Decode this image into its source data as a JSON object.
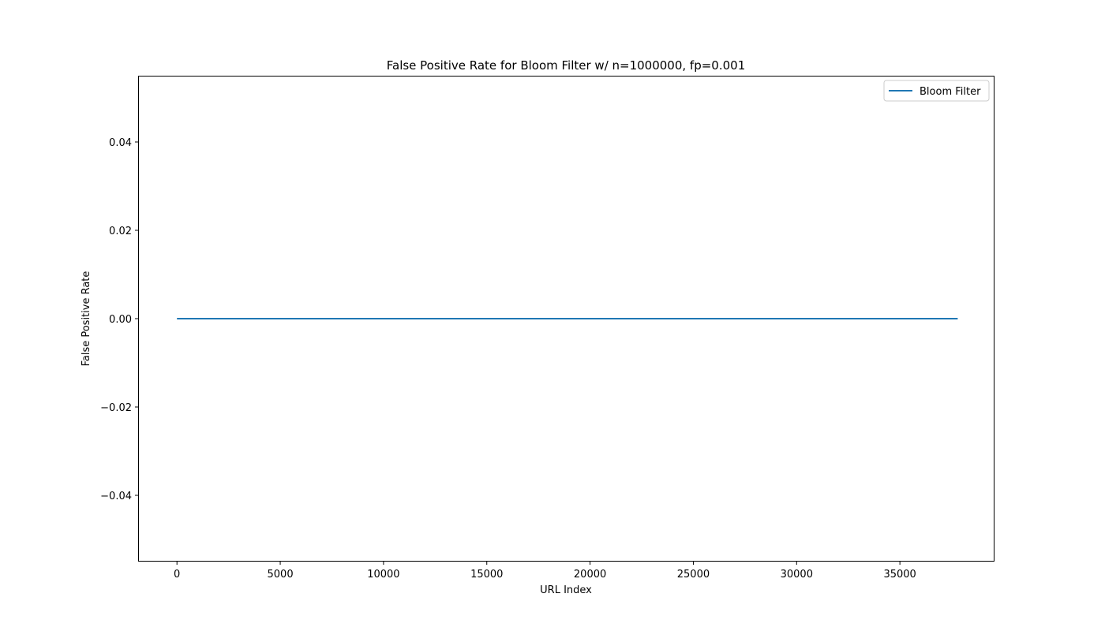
{
  "chart_data": {
    "type": "line",
    "title": "False Positive Rate for Bloom Filter w/ n=1000000, fp=0.001",
    "xlabel": "URL Index",
    "ylabel": "False Positive Rate",
    "xlim": [
      -1880,
      39580
    ],
    "ylim": [
      -0.055,
      0.055
    ],
    "xticks": [
      0,
      5000,
      10000,
      15000,
      20000,
      25000,
      30000,
      35000
    ],
    "xtick_labels": [
      "0",
      "5000",
      "10000",
      "15000",
      "20000",
      "25000",
      "30000",
      "35000"
    ],
    "yticks": [
      -0.04,
      -0.02,
      0.0,
      0.02,
      0.04
    ],
    "ytick_labels": [
      "−0.04",
      "−0.02",
      "0.00",
      "0.02",
      "0.04"
    ],
    "grid": false,
    "legend_position": "upper right",
    "series": [
      {
        "name": "Bloom Filter",
        "color": "#1f77b4",
        "x": [
          0,
          37800
        ],
        "y": [
          0.0,
          0.0
        ]
      }
    ]
  }
}
